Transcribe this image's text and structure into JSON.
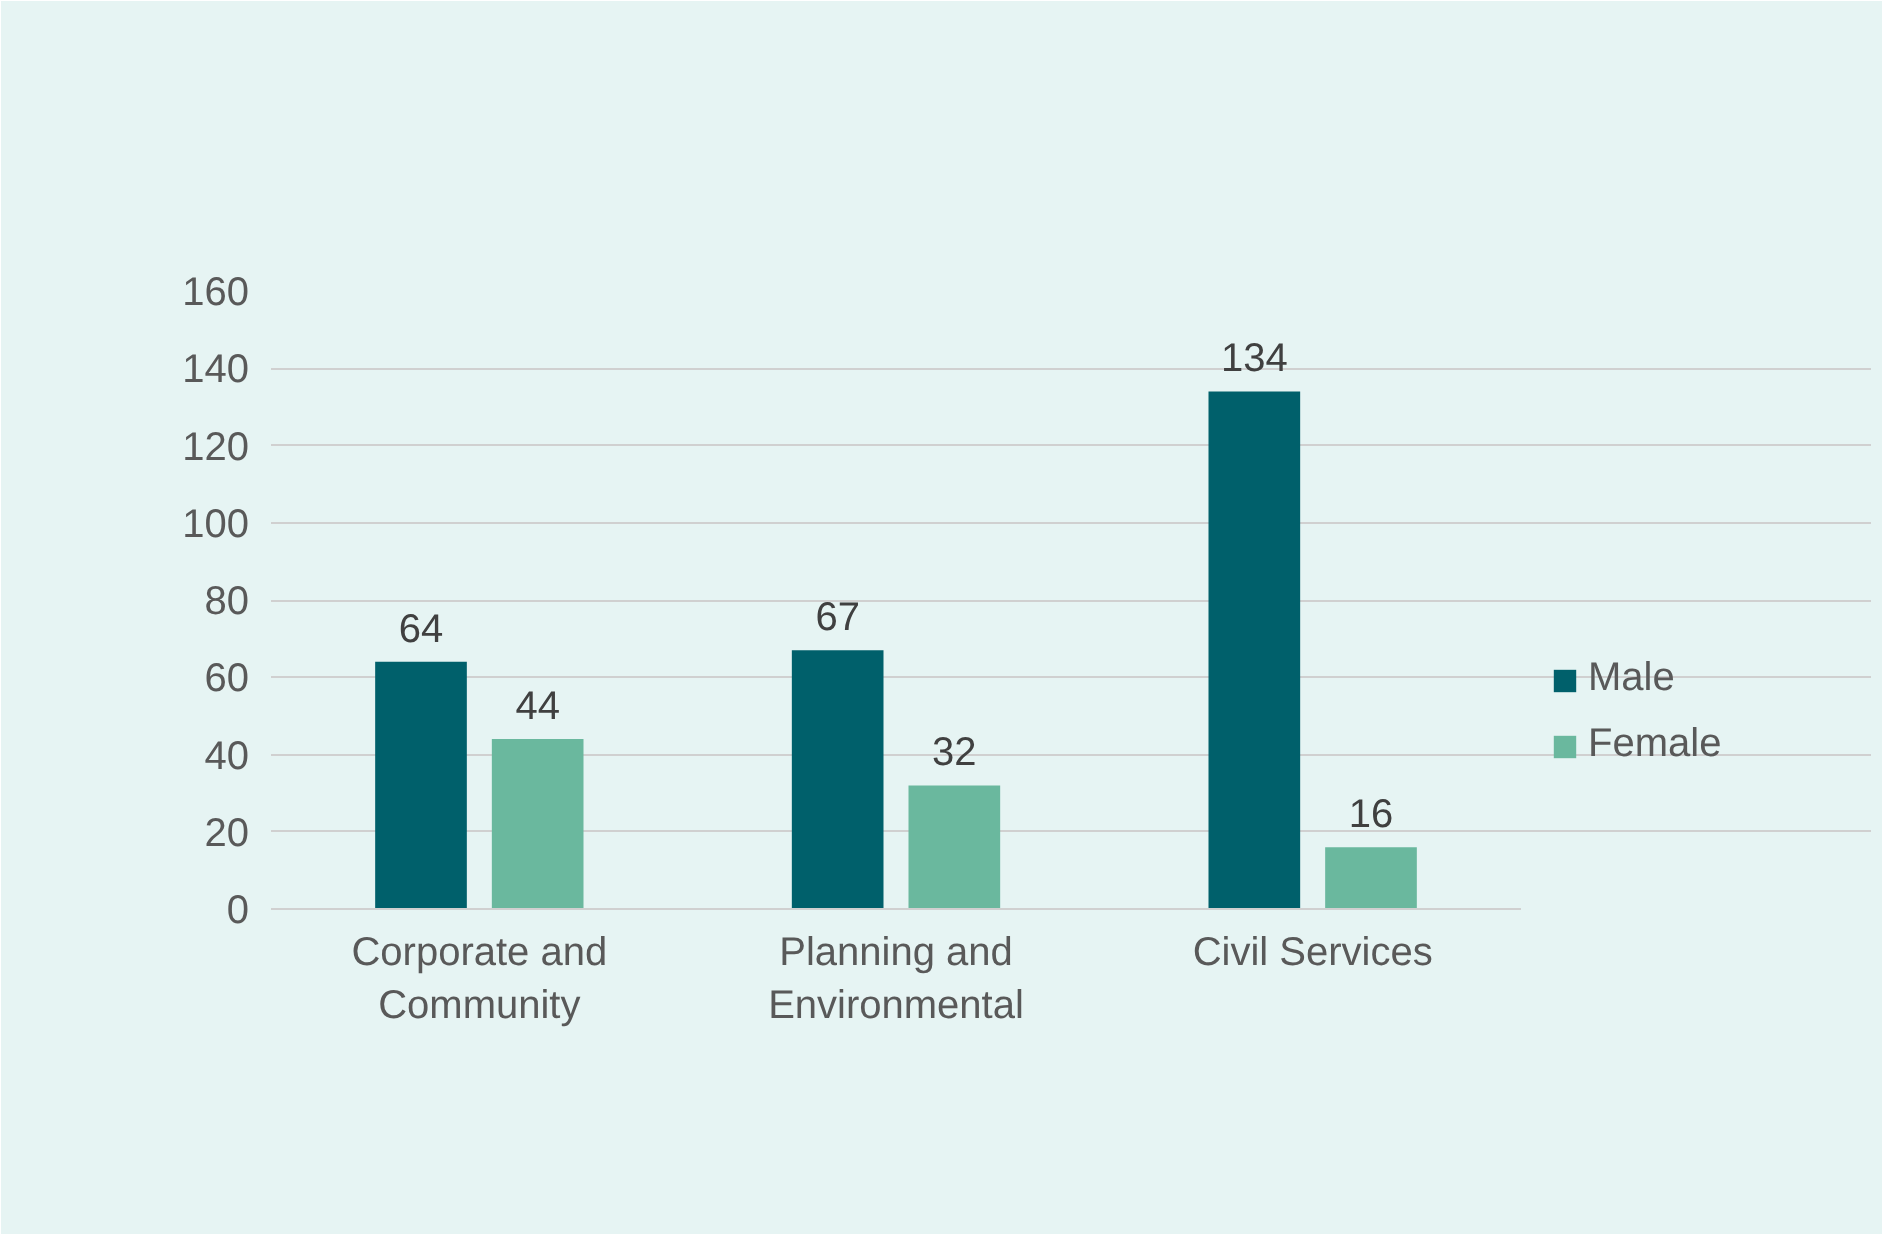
{
  "chart_data": {
    "type": "bar",
    "categories": [
      "Corporate and Community",
      "Planning and Environmental",
      "Civil Services"
    ],
    "series": [
      {
        "name": "Male",
        "color": "#00606b",
        "values": [
          64,
          67,
          134
        ]
      },
      {
        "name": "Female",
        "color": "#6ab89e",
        "values": [
          44,
          32,
          16
        ]
      }
    ],
    "ylim": [
      0,
      160
    ],
    "yticks": [
      0,
      20,
      40,
      60,
      80,
      100,
      120,
      140,
      160
    ],
    "grid": "y",
    "legend": "right",
    "data_labels": true
  }
}
